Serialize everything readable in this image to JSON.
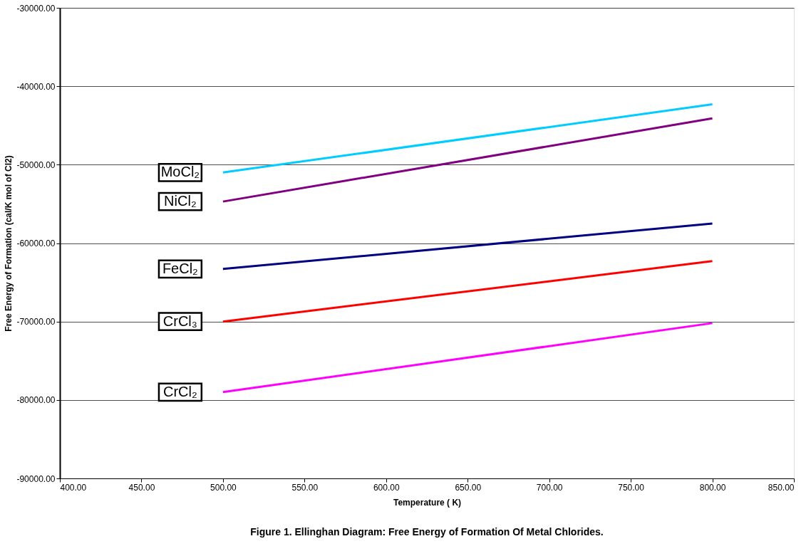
{
  "chart_data": {
    "type": "line",
    "xlabel": "Temperature ( K)",
    "ylabel": "Free Energy of Formation (cal/K mol of Cl2)",
    "annotations": [
      "Figure 1. Ellinghan Diagram: Free Energy of Formation Of Metal Chlorides."
    ],
    "xlim": [
      400,
      850
    ],
    "xticks": [
      {
        "value": 400,
        "label": "400.00"
      },
      {
        "value": 450,
        "label": "450.00"
      },
      {
        "value": 500,
        "label": "500.00"
      },
      {
        "value": 550,
        "label": "550.00"
      },
      {
        "value": 600,
        "label": "600.00"
      },
      {
        "value": 650,
        "label": "650.00"
      },
      {
        "value": 700,
        "label": "700.00"
      },
      {
        "value": 750,
        "label": "750.00"
      },
      {
        "value": 800,
        "label": "800.00"
      },
      {
        "value": 850,
        "label": "850.00"
      }
    ],
    "ylim": [
      -90000,
      -30000
    ],
    "yticks": [
      {
        "value": -90000,
        "label": "-90000.00"
      },
      {
        "value": -80000,
        "label": "-80000.00"
      },
      {
        "value": -70000,
        "label": "-70000.00"
      },
      {
        "value": -60000,
        "label": "-60000.00"
      },
      {
        "value": -50000,
        "label": "-50000.00"
      },
      {
        "value": -40000,
        "label": "-40000.00"
      },
      {
        "value": -30000,
        "label": "-30000.00"
      }
    ],
    "x": [
      500,
      800
    ],
    "grid": "y",
    "legend": false,
    "marker": "none",
    "line_style": "solid",
    "series": [
      {
        "name": "MoCl₂",
        "color": "#00ccff",
        "values": [
          -51000,
          -42300
        ]
      },
      {
        "name": "NiCl₂",
        "color": "#800080",
        "values": [
          -54700,
          -44100
        ]
      },
      {
        "name": "FeCl₂",
        "color": "#000080",
        "values": [
          -63300,
          -57500
        ]
      },
      {
        "name": "CrCl₃",
        "color": "#ff0000",
        "values": [
          -70000,
          -62300
        ]
      },
      {
        "name": "CrCl₂",
        "color": "#ff00ff",
        "values": [
          -79000,
          -70200
        ]
      }
    ]
  }
}
